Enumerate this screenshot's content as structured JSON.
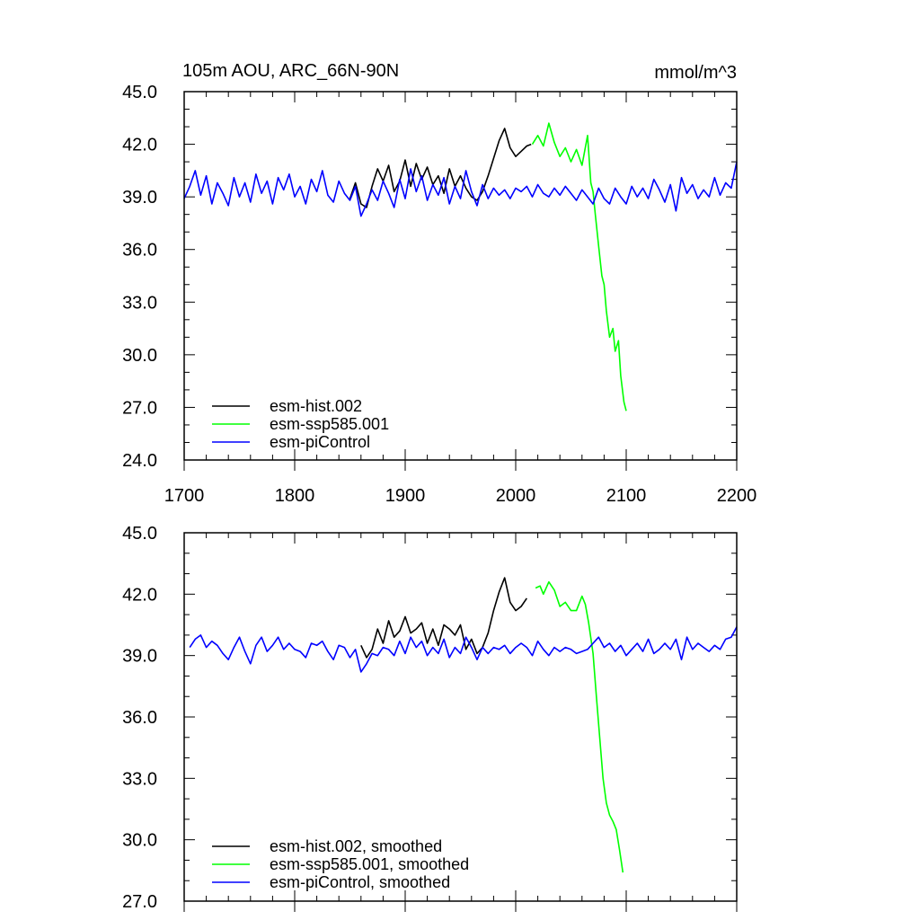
{
  "chart_data": [
    {
      "type": "line",
      "title": "105m AOU, ARC_66N-90N",
      "units": "mmol/m^3",
      "xlim": [
        1700,
        2200
      ],
      "ylim": [
        24,
        45
      ],
      "xticks": [
        "1700",
        "1800",
        "1900",
        "2000",
        "2100",
        "2200"
      ],
      "yticks": [
        "24.0",
        "27.0",
        "30.0",
        "33.0",
        "36.0",
        "39.0",
        "42.0",
        "45.0"
      ],
      "legend_position": "bottom-left",
      "series": [
        {
          "name": "esm-hist.002",
          "color": "#000000",
          "x": [
            1850,
            1855,
            1860,
            1865,
            1870,
            1875,
            1880,
            1885,
            1890,
            1895,
            1900,
            1905,
            1910,
            1915,
            1920,
            1925,
            1930,
            1935,
            1940,
            1945,
            1950,
            1955,
            1960,
            1965,
            1970,
            1975,
            1980,
            1985,
            1990,
            1995,
            2000,
            2005,
            2010,
            2014
          ],
          "values": [
            38.9,
            39.8,
            38.6,
            38.4,
            39.6,
            40.6,
            39.9,
            40.8,
            39.3,
            39.9,
            41.1,
            39.6,
            40.9,
            40.0,
            40.7,
            39.7,
            40.2,
            39.2,
            40.6,
            39.6,
            40.2,
            39.5,
            39.0,
            38.8,
            39.3,
            40.2,
            41.2,
            42.2,
            42.9,
            41.8,
            41.3,
            41.6,
            41.9,
            42.0
          ]
        },
        {
          "name": "esm-ssp585.001",
          "color": "#00ff00",
          "x": [
            2015,
            2020,
            2025,
            2030,
            2035,
            2040,
            2045,
            2050,
            2055,
            2060,
            2065,
            2068,
            2070,
            2072,
            2075,
            2078,
            2080,
            2082,
            2085,
            2088,
            2090,
            2093,
            2095,
            2098,
            2100
          ],
          "values": [
            42.0,
            42.5,
            41.9,
            43.2,
            42.1,
            41.3,
            41.8,
            41.0,
            41.7,
            40.8,
            42.5,
            39.8,
            39.3,
            38.0,
            36.2,
            34.5,
            34.0,
            32.5,
            31.0,
            31.5,
            30.2,
            30.8,
            28.8,
            27.3,
            26.8
          ]
        },
        {
          "name": "esm-piControl",
          "color": "#0000ff",
          "x": [
            1700,
            1705,
            1710,
            1715,
            1720,
            1725,
            1730,
            1735,
            1740,
            1745,
            1750,
            1755,
            1760,
            1765,
            1770,
            1775,
            1780,
            1785,
            1790,
            1795,
            1800,
            1805,
            1810,
            1815,
            1820,
            1825,
            1830,
            1835,
            1840,
            1845,
            1850,
            1855,
            1860,
            1865,
            1870,
            1875,
            1880,
            1885,
            1890,
            1895,
            1900,
            1905,
            1910,
            1915,
            1920,
            1925,
            1930,
            1935,
            1940,
            1945,
            1950,
            1955,
            1960,
            1965,
            1970,
            1975,
            1980,
            1985,
            1990,
            1995,
            2000,
            2005,
            2010,
            2015,
            2020,
            2025,
            2030,
            2035,
            2040,
            2045,
            2050,
            2055,
            2060,
            2065,
            2070,
            2075,
            2080,
            2085,
            2090,
            2095,
            2100,
            2105,
            2110,
            2115,
            2120,
            2125,
            2130,
            2135,
            2140,
            2145,
            2150,
            2155,
            2160,
            2165,
            2170,
            2175,
            2180,
            2185,
            2190,
            2195,
            2200
          ],
          "values": [
            38.9,
            39.6,
            40.5,
            39.1,
            40.2,
            38.6,
            39.8,
            39.2,
            38.5,
            40.1,
            39.0,
            39.8,
            38.7,
            40.3,
            39.2,
            39.9,
            38.6,
            40.1,
            39.4,
            40.3,
            39.0,
            39.6,
            38.6,
            40.0,
            39.3,
            40.5,
            39.1,
            38.7,
            39.9,
            39.2,
            38.8,
            39.6,
            37.9,
            38.6,
            39.4,
            38.8,
            39.9,
            39.2,
            38.4,
            40.0,
            38.9,
            40.6,
            39.3,
            40.2,
            38.8,
            39.7,
            39.1,
            40.1,
            38.6,
            39.6,
            38.9,
            40.5,
            39.3,
            38.5,
            39.7,
            38.9,
            39.5,
            39.1,
            39.4,
            38.9,
            39.5,
            39.3,
            39.6,
            39.0,
            39.7,
            39.2,
            39.0,
            39.5,
            39.1,
            39.6,
            39.2,
            38.8,
            39.4,
            39.0,
            38.6,
            39.5,
            38.9,
            38.6,
            39.5,
            39.0,
            38.6,
            39.6,
            39.0,
            39.5,
            38.9,
            40.0,
            39.4,
            38.7,
            39.7,
            38.2,
            40.1,
            39.2,
            39.7,
            38.9,
            39.4,
            39.0,
            40.1,
            39.1,
            39.8,
            39.5,
            41.0
          ]
        }
      ]
    },
    {
      "type": "line",
      "xlim": [
        1700,
        2200
      ],
      "ylim": [
        27,
        45
      ],
      "yticks": [
        "27.0",
        "30.0",
        "33.0",
        "36.0",
        "39.0",
        "42.0",
        "45.0"
      ],
      "legend_position": "bottom-left",
      "series": [
        {
          "name": "esm-hist.002, smoothed",
          "color": "#000000",
          "x": [
            1860,
            1865,
            1870,
            1875,
            1880,
            1885,
            1890,
            1895,
            1900,
            1905,
            1910,
            1915,
            1920,
            1925,
            1930,
            1935,
            1940,
            1945,
            1950,
            1955,
            1960,
            1965,
            1970,
            1975,
            1980,
            1985,
            1990,
            1995,
            2000,
            2005,
            2010
          ],
          "values": [
            39.5,
            38.9,
            39.3,
            40.3,
            39.6,
            40.7,
            39.9,
            40.2,
            40.9,
            40.1,
            40.3,
            40.6,
            39.6,
            40.3,
            39.5,
            40.5,
            40.3,
            40.0,
            40.5,
            39.3,
            39.8,
            39.1,
            39.4,
            40.1,
            41.2,
            42.1,
            42.8,
            41.6,
            41.2,
            41.4,
            41.8
          ]
        },
        {
          "name": "esm-ssp585.001, smoothed",
          "color": "#00ff00",
          "x": [
            2018,
            2022,
            2025,
            2030,
            2035,
            2040,
            2045,
            2050,
            2055,
            2060,
            2063,
            2066,
            2070,
            2073,
            2076,
            2079,
            2082,
            2085,
            2088,
            2091,
            2094,
            2097
          ],
          "values": [
            42.3,
            42.4,
            42.0,
            42.6,
            42.2,
            41.4,
            41.6,
            41.2,
            41.2,
            41.9,
            41.5,
            40.6,
            39.1,
            37.0,
            35.0,
            33.0,
            31.8,
            31.2,
            30.9,
            30.5,
            29.5,
            28.4
          ]
        },
        {
          "name": "esm-piControl, smoothed",
          "color": "#0000ff",
          "x": [
            1705,
            1710,
            1715,
            1720,
            1725,
            1730,
            1735,
            1740,
            1745,
            1750,
            1755,
            1760,
            1765,
            1770,
            1775,
            1780,
            1785,
            1790,
            1795,
            1800,
            1805,
            1810,
            1815,
            1820,
            1825,
            1830,
            1835,
            1840,
            1845,
            1850,
            1855,
            1860,
            1865,
            1870,
            1875,
            1880,
            1885,
            1890,
            1895,
            1900,
            1905,
            1910,
            1915,
            1920,
            1925,
            1930,
            1935,
            1940,
            1945,
            1950,
            1955,
            1960,
            1965,
            1970,
            1975,
            1980,
            1985,
            1990,
            1995,
            2000,
            2005,
            2010,
            2015,
            2020,
            2025,
            2030,
            2035,
            2040,
            2045,
            2050,
            2055,
            2060,
            2065,
            2070,
            2075,
            2080,
            2085,
            2090,
            2095,
            2100,
            2105,
            2110,
            2115,
            2120,
            2125,
            2130,
            2135,
            2140,
            2145,
            2150,
            2155,
            2160,
            2165,
            2170,
            2175,
            2180,
            2185,
            2190,
            2195,
            2200
          ],
          "values": [
            39.4,
            39.8,
            40.0,
            39.4,
            39.7,
            39.5,
            39.1,
            38.8,
            39.4,
            39.9,
            39.2,
            38.6,
            39.5,
            39.9,
            39.2,
            39.5,
            39.9,
            39.3,
            39.6,
            39.3,
            39.2,
            38.9,
            39.6,
            39.5,
            39.7,
            39.2,
            38.8,
            39.5,
            39.4,
            38.9,
            39.3,
            38.2,
            38.6,
            39.1,
            39.0,
            39.4,
            39.3,
            39.0,
            39.7,
            39.1,
            39.9,
            39.4,
            39.7,
            39.0,
            39.4,
            39.1,
            39.8,
            38.9,
            39.4,
            39.1,
            39.9,
            39.4,
            38.8,
            39.4,
            39.1,
            39.4,
            39.3,
            39.5,
            39.1,
            39.4,
            39.6,
            39.4,
            39.0,
            39.7,
            39.3,
            39.0,
            39.4,
            39.2,
            39.4,
            39.3,
            39.1,
            39.2,
            39.3,
            39.6,
            39.9,
            39.4,
            39.6,
            39.2,
            39.5,
            39.0,
            39.3,
            39.6,
            39.2,
            39.8,
            39.1,
            39.3,
            39.6,
            39.3,
            39.8,
            38.8,
            39.9,
            39.3,
            39.6,
            39.4,
            39.2,
            39.5,
            39.3,
            39.8,
            39.9,
            40.4
          ]
        }
      ]
    }
  ]
}
